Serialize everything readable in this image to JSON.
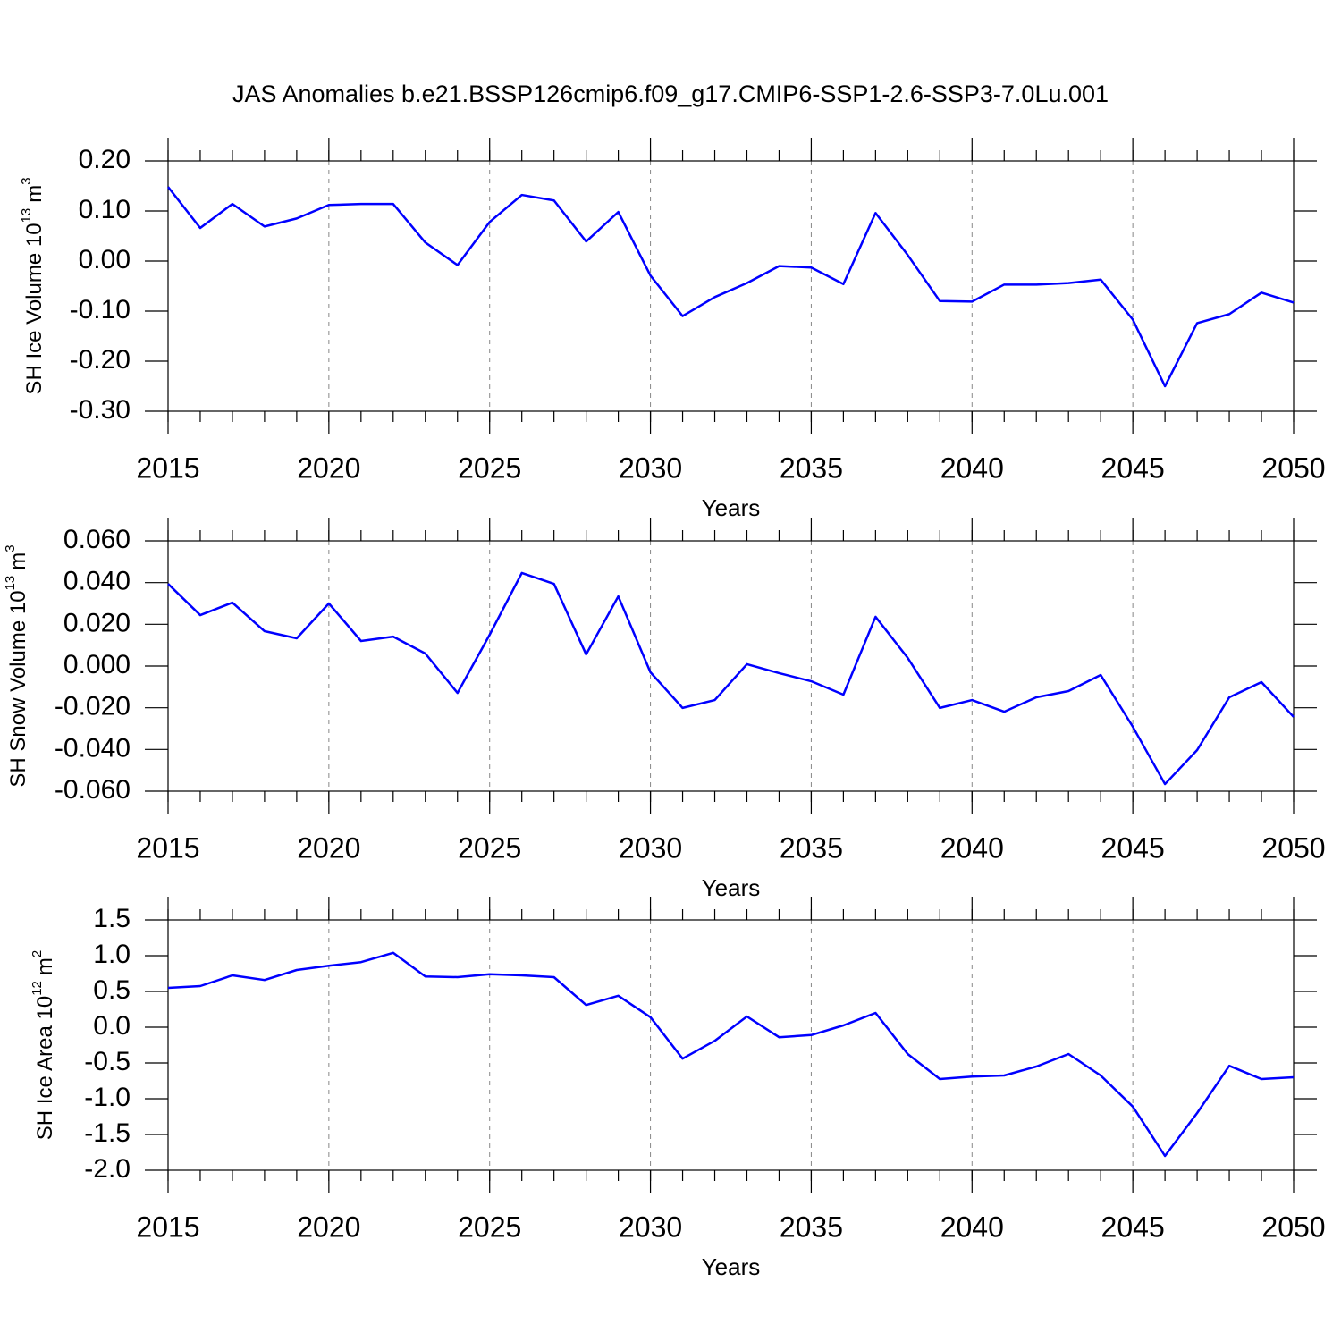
{
  "title": "JAS Anomalies b.e21.BSSP126cmip6.f09_g17.CMIP6-SSP1-2.6-SSP3-7.0Lu.001",
  "chart_data": [
    {
      "type": "line",
      "color": "#0000ff",
      "grid": "x",
      "xlabel": "Years",
      "ylabel": {
        "base": "SH Ice Volume 10",
        "exp": "13",
        "unit": "m",
        "unit_exp": "3"
      },
      "x": [
        2015,
        2016,
        2017,
        2018,
        2019,
        2020,
        2021,
        2022,
        2023,
        2024,
        2025,
        2026,
        2027,
        2028,
        2029,
        2030,
        2031,
        2032,
        2033,
        2034,
        2035,
        2036,
        2037,
        2038,
        2039,
        2040,
        2041,
        2042,
        2043,
        2044,
        2045,
        2046,
        2047,
        2048,
        2049,
        2050
      ],
      "values": [
        0.148,
        0.066,
        0.114,
        0.069,
        0.085,
        0.112,
        0.114,
        0.114,
        0.037,
        -0.008,
        0.078,
        0.132,
        0.121,
        0.039,
        0.098,
        -0.029,
        -0.11,
        -0.072,
        -0.044,
        -0.01,
        -0.013,
        -0.046,
        0.096,
        0.012,
        -0.08,
        -0.081,
        -0.047,
        -0.047,
        -0.044,
        -0.037,
        -0.117,
        -0.25,
        -0.124,
        -0.106,
        -0.063,
        -0.083
      ],
      "xlim": [
        2015,
        2050
      ],
      "xticks": [
        2015,
        2020,
        2025,
        2030,
        2035,
        2040,
        2045,
        2050
      ],
      "ylim": [
        -0.3,
        0.2
      ],
      "yticks": [
        {
          "value": 0.2,
          "label": "0.20"
        },
        {
          "value": 0.1,
          "label": "0.10"
        },
        {
          "value": 0,
          "label": "0.00"
        },
        {
          "value": -0.1,
          "label": "-0.10"
        },
        {
          "value": -0.2,
          "label": "-0.20"
        },
        {
          "value": -0.3,
          "label": "-0.30"
        }
      ]
    },
    {
      "type": "line",
      "color": "#0000ff",
      "grid": "x",
      "xlabel": "Years",
      "ylabel": {
        "base": "SH Snow Volume 10",
        "exp": "13",
        "unit": "m",
        "unit_exp": "3"
      },
      "x": [
        2015,
        2016,
        2017,
        2018,
        2019,
        2020,
        2021,
        2022,
        2023,
        2024,
        2025,
        2026,
        2027,
        2028,
        2029,
        2030,
        2031,
        2032,
        2033,
        2034,
        2035,
        2036,
        2037,
        2038,
        2039,
        2040,
        2041,
        2042,
        2043,
        2044,
        2045,
        2046,
        2047,
        2048,
        2049,
        2050
      ],
      "values": [
        0.0394,
        0.0244,
        0.0304,
        0.0167,
        0.0133,
        0.03,
        0.012,
        0.0141,
        0.006,
        -0.0129,
        0.015,
        0.0446,
        0.0394,
        0.0056,
        0.0334,
        -0.003,
        -0.0201,
        -0.0163,
        0.0009,
        -0.0034,
        -0.0073,
        -0.0137,
        0.0236,
        0.0039,
        -0.0201,
        -0.0163,
        -0.0219,
        -0.015,
        -0.012,
        -0.0043,
        -0.0291,
        -0.0566,
        -0.0403,
        -0.015,
        -0.0077,
        -0.0244
      ],
      "xlim": [
        2015,
        2050
      ],
      "xticks": [
        2015,
        2020,
        2025,
        2030,
        2035,
        2040,
        2045,
        2050
      ],
      "ylim": [
        -0.06,
        0.06
      ],
      "yticks": [
        {
          "value": 0.06,
          "label": "0.060"
        },
        {
          "value": 0.04,
          "label": "0.040"
        },
        {
          "value": 0.02,
          "label": "0.020"
        },
        {
          "value": 0,
          "label": "0.000"
        },
        {
          "value": -0.02,
          "label": "-0.020"
        },
        {
          "value": -0.04,
          "label": "-0.040"
        },
        {
          "value": -0.06,
          "label": "-0.060"
        }
      ]
    },
    {
      "type": "line",
      "color": "#0000ff",
      "grid": "x",
      "xlabel": "Years",
      "ylabel": {
        "base": "SH Ice Area 10",
        "exp": "12",
        "unit": "m",
        "unit_exp": "2"
      },
      "x": [
        2015,
        2016,
        2017,
        2018,
        2019,
        2020,
        2021,
        2022,
        2023,
        2024,
        2025,
        2026,
        2027,
        2028,
        2029,
        2030,
        2031,
        2032,
        2033,
        2034,
        2035,
        2036,
        2037,
        2038,
        2039,
        2040,
        2041,
        2042,
        2043,
        2044,
        2045,
        2046,
        2047,
        2048,
        2049,
        2050
      ],
      "values": [
        0.55,
        0.575,
        0.725,
        0.66,
        0.8,
        0.86,
        0.91,
        1.04,
        0.71,
        0.7,
        0.74,
        0.725,
        0.7,
        0.31,
        0.44,
        0.14,
        -0.44,
        -0.19,
        0.15,
        -0.14,
        -0.11,
        0.025,
        0.2,
        -0.375,
        -0.725,
        -0.69,
        -0.675,
        -0.55,
        -0.375,
        -0.675,
        -1.11,
        -1.8,
        -1.2,
        -0.54,
        -0.725,
        -0.7
      ],
      "xlim": [
        2015,
        2050
      ],
      "xticks": [
        2015,
        2020,
        2025,
        2030,
        2035,
        2040,
        2045,
        2050
      ],
      "ylim": [
        -2,
        1.5
      ],
      "yticks": [
        1.5,
        {
          "value": 1,
          "label": "1.0"
        },
        0.5,
        {
          "value": 0,
          "label": "0.0"
        },
        -0.5,
        {
          "value": -1,
          "label": "-1.0"
        },
        -1.5,
        {
          "value": -2,
          "label": "-2.0"
        }
      ]
    }
  ]
}
